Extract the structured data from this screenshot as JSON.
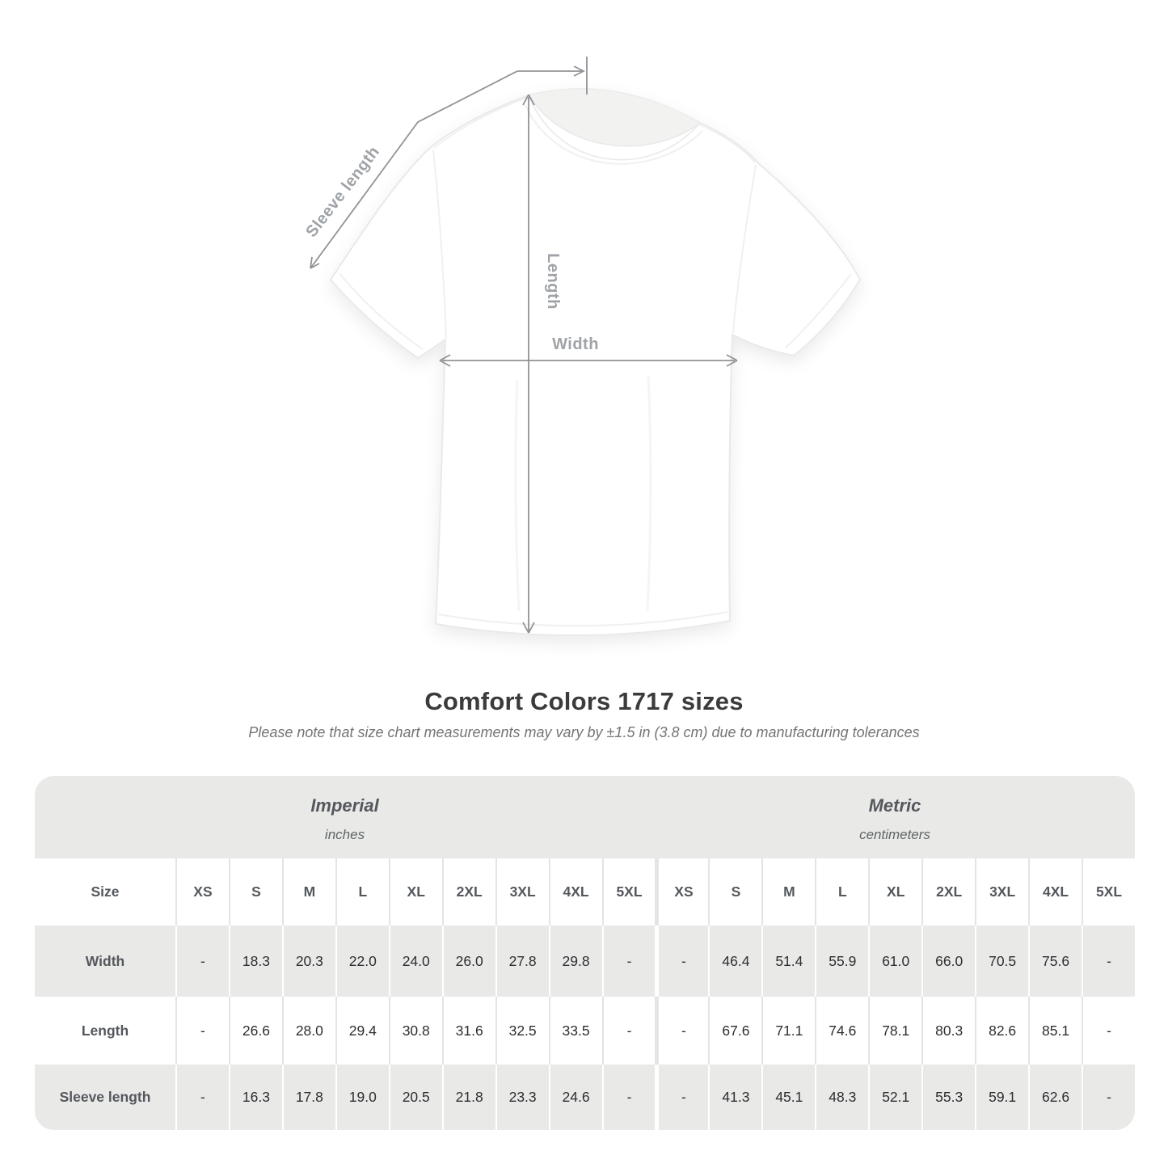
{
  "diagram": {
    "sleeve_label": "Sleeve length",
    "length_label": "Length",
    "width_label": "Width"
  },
  "chart_data": {
    "type": "table",
    "title": "Comfort Colors 1717 sizes",
    "subtitle": "Please note that size chart measurements may vary by ±1.5 in (3.8 cm) due to manufacturing tolerances",
    "unit_groups": [
      {
        "label": "Imperial",
        "unit": "inches"
      },
      {
        "label": "Metric",
        "unit": "centimeters"
      }
    ],
    "corner_header": "Size",
    "columns": [
      "XS",
      "S",
      "M",
      "L",
      "XL",
      "2XL",
      "3XL",
      "4XL",
      "5XL",
      "XS",
      "S",
      "M",
      "L",
      "XL",
      "2XL",
      "3XL",
      "4XL",
      "5XL"
    ],
    "rows": [
      {
        "label": "Width",
        "values": [
          "-",
          "18.3",
          "20.3",
          "22.0",
          "24.0",
          "26.0",
          "27.8",
          "29.8",
          "-",
          "-",
          "46.4",
          "51.4",
          "55.9",
          "61.0",
          "66.0",
          "70.5",
          "75.6",
          "-"
        ]
      },
      {
        "label": "Length",
        "values": [
          "-",
          "26.6",
          "28.0",
          "29.4",
          "30.8",
          "31.6",
          "32.5",
          "33.5",
          "-",
          "-",
          "67.6",
          "71.1",
          "74.6",
          "78.1",
          "80.3",
          "82.6",
          "85.1",
          "-"
        ]
      },
      {
        "label": "Sleeve length",
        "values": [
          "-",
          "16.3",
          "17.8",
          "19.0",
          "20.5",
          "21.8",
          "23.3",
          "24.6",
          "-",
          "-",
          "41.3",
          "45.1",
          "48.3",
          "52.1",
          "55.3",
          "59.1",
          "62.6",
          "-"
        ]
      }
    ]
  },
  "colors": {
    "band_gray": "#e9e9e8",
    "row_gray": "#e9e9e8",
    "separator_light": "#e4e4e4",
    "heading_text": "#3b3b3b",
    "note_text": "#747474",
    "table_label_text": "#54585c",
    "value_text": "#2c2e30",
    "line_color": "#909396",
    "diagram_label_text": "#9fa3a7",
    "shirt_outline": "#e9e9e9",
    "collar_inside": "#f2f2f1"
  }
}
